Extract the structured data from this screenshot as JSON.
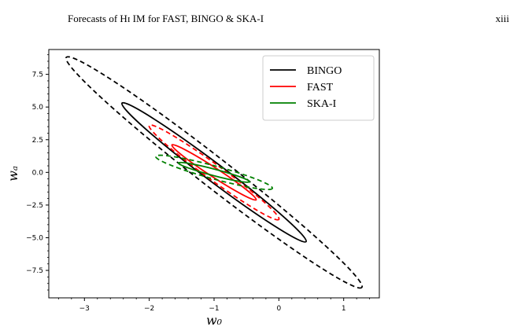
{
  "header": {
    "title": "Forecasts of Hɪ IM for FAST, BINGO & SKA-I",
    "page_number": "xiii"
  },
  "colors": {
    "BINGO": "#000000",
    "FAST": "#ff0000",
    "SKA-I": "#008000"
  },
  "chart_data": {
    "type": "scatter",
    "title": "",
    "xlabel": "w₀",
    "ylabel": "wₐ",
    "xlim": [
      -3.55,
      1.55
    ],
    "ylim": [
      -9.6,
      9.4
    ],
    "xticks": [
      -3,
      -2,
      -1,
      0,
      1
    ],
    "xtick_labels": [
      "−3",
      "−2",
      "−1",
      "0",
      "1"
    ],
    "yticks": [
      7.5,
      5.0,
      2.5,
      0.0,
      -2.5,
      -5.0,
      -7.5
    ],
    "ytick_labels": [
      "7.5",
      "5.0",
      "2.5",
      "0.0",
      "−2.5",
      "−5.0",
      "−7.5"
    ],
    "legend_position": "top-right",
    "legend": [
      "BINGO",
      "FAST",
      "SKA-I"
    ],
    "series": [
      {
        "name": "BINGO",
        "fiducial": [
          -1.0,
          0.0
        ],
        "ellipses": [
          {
            "level": "1-sigma",
            "linestyle": "solid",
            "vertex_a": [
              -2.42,
              5.3
            ],
            "vertex_b": [
              0.42,
              -5.3
            ],
            "minor_semi_axis": 0.14
          },
          {
            "level": "2-sigma",
            "linestyle": "dashed",
            "vertex_a": [
              -3.28,
              8.8
            ],
            "vertex_b": [
              1.28,
              -8.8
            ],
            "minor_semi_axis": 0.23
          }
        ]
      },
      {
        "name": "FAST",
        "fiducial": [
          -1.0,
          0.0
        ],
        "ellipses": [
          {
            "level": "1-sigma",
            "linestyle": "solid",
            "vertex_a": [
              -1.65,
              2.1
            ],
            "vertex_b": [
              -0.35,
              -2.1
            ],
            "minor_semi_axis": 0.07
          },
          {
            "level": "2-sigma",
            "linestyle": "dashed",
            "vertex_a": [
              -2.0,
              3.6
            ],
            "vertex_b": [
              0.0,
              -3.6
            ],
            "minor_semi_axis": 0.12
          }
        ]
      },
      {
        "name": "SKA-I",
        "fiducial": [
          -1.0,
          0.0
        ],
        "ellipses": [
          {
            "level": "1-sigma",
            "linestyle": "solid",
            "vertex_a": [
              -1.55,
              0.72
            ],
            "vertex_b": [
              -0.45,
              -0.72
            ],
            "minor_semi_axis": 0.05
          },
          {
            "level": "2-sigma",
            "linestyle": "dashed",
            "vertex_a": [
              -1.9,
              1.22
            ],
            "vertex_b": [
              -0.1,
              -1.22
            ],
            "minor_semi_axis": 0.1
          }
        ]
      }
    ]
  }
}
